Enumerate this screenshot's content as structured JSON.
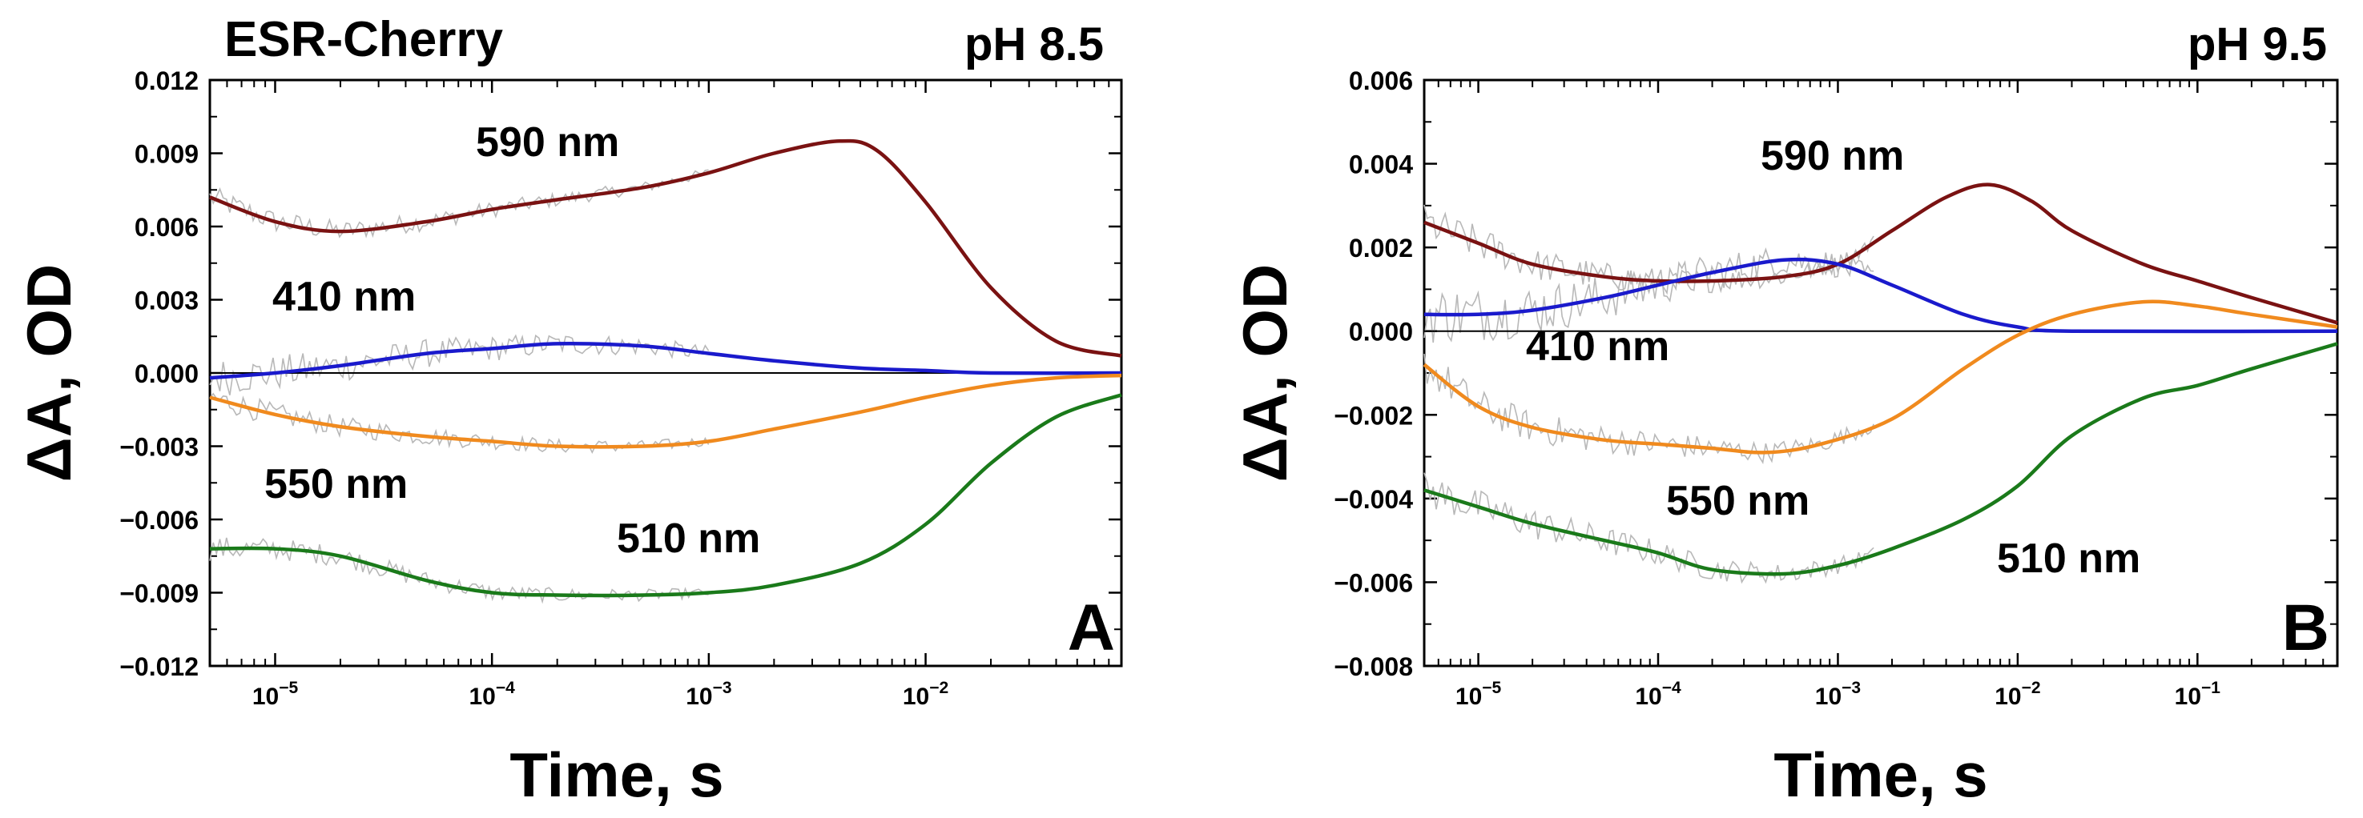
{
  "chart_data": [
    {
      "type": "line",
      "panel_label": "A",
      "title": "ESR-Cherry",
      "condition": "pH 8.5",
      "xlabel": "Time, s",
      "ylabel": "ΔA, OD",
      "xscale": "log",
      "xlim": [
        5e-06,
        0.08
      ],
      "ylim": [
        -0.012,
        0.012
      ],
      "x_ticks": [
        {
          "value": 1e-05,
          "base": "10",
          "exp": "-5"
        },
        {
          "value": 0.0001,
          "base": "10",
          "exp": "-4"
        },
        {
          "value": 0.001,
          "base": "10",
          "exp": "-3"
        },
        {
          "value": 0.01,
          "base": "10",
          "exp": "-2"
        }
      ],
      "y_ticks": [
        {
          "value": 0.012,
          "label": "0.012"
        },
        {
          "value": 0.009,
          "label": "0.009"
        },
        {
          "value": 0.006,
          "label": "0.006"
        },
        {
          "value": 0.003,
          "label": "0.003"
        },
        {
          "value": 0.0,
          "label": "0.000"
        },
        {
          "value": -0.003,
          "label": "-0.003"
        },
        {
          "value": -0.006,
          "label": "-0.006"
        },
        {
          "value": -0.009,
          "label": "-0.009"
        },
        {
          "value": -0.012,
          "label": "-0.012"
        }
      ],
      "series": [
        {
          "name": "590 nm",
          "color": "#7a1212",
          "x": [
            5e-06,
            1e-05,
            2e-05,
            5e-05,
            0.0001,
            0.0002,
            0.0005,
            0.001,
            0.002,
            0.004,
            0.006,
            0.01,
            0.02,
            0.04,
            0.08
          ],
          "y": [
            0.0072,
            0.0062,
            0.0058,
            0.0062,
            0.0067,
            0.0071,
            0.0076,
            0.0082,
            0.009,
            0.0095,
            0.0091,
            0.007,
            0.0035,
            0.0013,
            0.0007
          ]
        },
        {
          "name": "410 nm",
          "color": "#1a1acc",
          "x": [
            5e-06,
            1e-05,
            2e-05,
            5e-05,
            0.0001,
            0.0002,
            0.0005,
            0.001,
            0.002,
            0.005,
            0.01,
            0.02,
            0.08
          ],
          "y": [
            -0.0002,
            0.0,
            0.0003,
            0.0008,
            0.001,
            0.0012,
            0.0011,
            0.0008,
            0.0005,
            0.0002,
            0.0001,
            0.0,
            0.0
          ]
        },
        {
          "name": "550 nm",
          "color": "#f08a1e",
          "x": [
            5e-06,
            1e-05,
            2e-05,
            5e-05,
            0.0001,
            0.0002,
            0.0005,
            0.001,
            0.002,
            0.005,
            0.01,
            0.02,
            0.04,
            0.08
          ],
          "y": [
            -0.001,
            -0.0017,
            -0.0022,
            -0.0026,
            -0.0028,
            -0.003,
            -0.003,
            -0.0028,
            -0.0023,
            -0.0016,
            -0.001,
            -0.0005,
            -0.0002,
            -0.0001
          ]
        },
        {
          "name": "510 nm",
          "color": "#1a7a1a",
          "x": [
            5e-06,
            1e-05,
            2e-05,
            5e-05,
            0.0001,
            0.0002,
            0.0005,
            0.001,
            0.002,
            0.005,
            0.01,
            0.02,
            0.04,
            0.08
          ],
          "y": [
            -0.0072,
            -0.0072,
            -0.0075,
            -0.0085,
            -0.009,
            -0.0091,
            -0.0091,
            -0.009,
            -0.0087,
            -0.0078,
            -0.0062,
            -0.0037,
            -0.0018,
            -0.0009
          ]
        }
      ],
      "annotations": [
        "590 nm",
        "410 nm",
        "550 nm",
        "510 nm"
      ]
    },
    {
      "type": "line",
      "panel_label": "B",
      "title": "",
      "condition": "pH 9.5",
      "xlabel": "Time, s",
      "ylabel": "ΔA, OD",
      "xscale": "log",
      "xlim": [
        5e-06,
        0.6
      ],
      "ylim": [
        -0.008,
        0.006
      ],
      "x_ticks": [
        {
          "value": 1e-05,
          "base": "10",
          "exp": "-5"
        },
        {
          "value": 0.0001,
          "base": "10",
          "exp": "-4"
        },
        {
          "value": 0.001,
          "base": "10",
          "exp": "-3"
        },
        {
          "value": 0.01,
          "base": "10",
          "exp": "-2"
        },
        {
          "value": 0.1,
          "base": "10",
          "exp": "-1"
        }
      ],
      "y_ticks": [
        {
          "value": 0.006,
          "label": "0.006"
        },
        {
          "value": 0.004,
          "label": "0.004"
        },
        {
          "value": 0.002,
          "label": "0.002"
        },
        {
          "value": 0.0,
          "label": "0.000"
        },
        {
          "value": -0.002,
          "label": "-0.002"
        },
        {
          "value": -0.004,
          "label": "-0.004"
        },
        {
          "value": -0.006,
          "label": "-0.006"
        },
        {
          "value": -0.008,
          "label": "-0.008"
        }
      ],
      "series": [
        {
          "name": "590 nm",
          "color": "#7a1212",
          "x": [
            5e-06,
            1e-05,
            2e-05,
            5e-05,
            0.0001,
            0.0002,
            0.0005,
            0.001,
            0.002,
            0.004,
            0.007,
            0.012,
            0.02,
            0.05,
            0.1,
            0.2,
            0.6
          ],
          "y": [
            0.0026,
            0.0021,
            0.0016,
            0.0013,
            0.0012,
            0.0012,
            0.0013,
            0.0016,
            0.0024,
            0.0032,
            0.0035,
            0.0031,
            0.0024,
            0.0016,
            0.0012,
            0.0008,
            0.0002
          ]
        },
        {
          "name": "410 nm",
          "color": "#1a1acc",
          "x": [
            5e-06,
            1e-05,
            2e-05,
            5e-05,
            0.0001,
            0.0002,
            0.0005,
            0.001,
            0.002,
            0.005,
            0.01,
            0.02,
            0.6
          ],
          "y": [
            0.0004,
            0.0004,
            0.0005,
            0.0008,
            0.0011,
            0.0014,
            0.0017,
            0.0016,
            0.0011,
            0.0004,
            0.0001,
            0.0,
            0.0
          ]
        },
        {
          "name": "550 nm",
          "color": "#f08a1e",
          "x": [
            5e-06,
            1e-05,
            2e-05,
            5e-05,
            0.0001,
            0.0002,
            0.0004,
            0.0008,
            0.002,
            0.005,
            0.01,
            0.02,
            0.05,
            0.1,
            0.2,
            0.6
          ],
          "y": [
            -0.0008,
            -0.0018,
            -0.0023,
            -0.0026,
            -0.0027,
            -0.0028,
            -0.0029,
            -0.0027,
            -0.0021,
            -0.0009,
            -0.0001,
            0.0004,
            0.0007,
            0.0006,
            0.0004,
            0.0001
          ]
        },
        {
          "name": "510 nm",
          "color": "#1a7a1a",
          "x": [
            5e-06,
            1e-05,
            2e-05,
            5e-05,
            0.0001,
            0.0002,
            0.0005,
            0.001,
            0.002,
            0.005,
            0.01,
            0.02,
            0.05,
            0.1,
            0.2,
            0.6
          ],
          "y": [
            -0.0038,
            -0.0042,
            -0.0046,
            -0.005,
            -0.0053,
            -0.0057,
            -0.0058,
            -0.0056,
            -0.0052,
            -0.0045,
            -0.0037,
            -0.0025,
            -0.0016,
            -0.0013,
            -0.0009,
            -0.0003
          ]
        }
      ],
      "annotations": [
        "590 nm",
        "410 nm",
        "550 nm",
        "510 nm"
      ]
    }
  ]
}
